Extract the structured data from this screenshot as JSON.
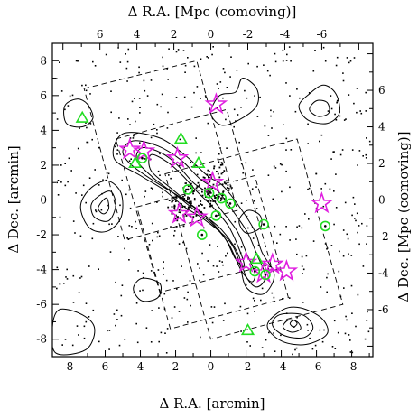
{
  "chart_data": {
    "type": "scatter",
    "title": "",
    "bottom_axis": {
      "label": "Δ R.A. [arcmin]",
      "range": [
        9,
        -9.2
      ],
      "ticks": [
        8,
        6,
        4,
        2,
        0,
        -2,
        -4,
        -6,
        -8
      ]
    },
    "left_axis": {
      "label": "Δ Dec. [arcmin]",
      "range": [
        -9,
        9
      ],
      "ticks": [
        -8,
        -6,
        -4,
        -2,
        0,
        2,
        4,
        6,
        8
      ]
    },
    "top_axis": {
      "label": "Δ R.A. [Mpc (comoving)]",
      "ticks": [
        6,
        4,
        2,
        0,
        -2,
        -4,
        -6
      ]
    },
    "right_axis": {
      "label": "Δ Dec. [Mpc (comoving)]",
      "ticks": [
        -6,
        -4,
        -2,
        0,
        2,
        4,
        6
      ]
    },
    "colors": {
      "star": "#e020e0",
      "circle": "#22dd22",
      "triangle": "#22dd22",
      "contour": "#000000",
      "field": "#000000"
    },
    "series": [
      {
        "marker": "star",
        "points": [
          [
            -0.3,
            5.5
          ],
          [
            4.6,
            2.9
          ],
          [
            3.8,
            2.8
          ],
          [
            1.9,
            2.4
          ],
          [
            -0.1,
            1.0
          ],
          [
            -6.3,
            -0.2
          ],
          [
            1.8,
            -0.8
          ],
          [
            0.8,
            -1.0
          ],
          [
            -2.0,
            -3.6
          ],
          [
            -3.5,
            -3.7
          ],
          [
            -4.3,
            -4.1
          ],
          [
            -3.0,
            -4.2
          ]
        ]
      },
      {
        "marker": "circle",
        "points": [
          [
            3.9,
            2.4
          ],
          [
            1.3,
            0.6
          ],
          [
            0.1,
            0.4
          ],
          [
            -0.6,
            0.1
          ],
          [
            -1.1,
            -0.2
          ],
          [
            -0.3,
            -0.9
          ],
          [
            -6.5,
            -1.5
          ],
          [
            -3.0,
            -1.4
          ],
          [
            0.5,
            -2.0
          ],
          [
            -2.5,
            -4.1
          ],
          [
            -3.1,
            -4.3
          ]
        ]
      },
      {
        "marker": "triangle",
        "points": [
          [
            7.3,
            4.7
          ],
          [
            1.7,
            3.5
          ],
          [
            4.3,
            2.1
          ],
          [
            0.7,
            2.1
          ],
          [
            -2.6,
            -3.4
          ],
          [
            -2.1,
            -7.5
          ]
        ]
      }
    ],
    "contours": [
      {
        "level": 1,
        "rings": [
          [
            [
              5.0,
              3.8
            ],
            [
              3.0,
              3.6
            ],
            [
              1.5,
              2.6
            ],
            [
              0.2,
              1.4
            ],
            [
              -0.7,
              0.8
            ],
            [
              -1.7,
              -0.5
            ],
            [
              -2.5,
              -1.8
            ],
            [
              -2.9,
              -3.0
            ],
            [
              -3.6,
              -4.3
            ],
            [
              -3.0,
              -5.4
            ],
            [
              -2.0,
              -5.0
            ],
            [
              -1.6,
              -3.5
            ],
            [
              -1.0,
              -2.3
            ],
            [
              0.4,
              -1.1
            ],
            [
              1.5,
              -0.4
            ],
            [
              2.7,
              0.6
            ],
            [
              4.0,
              1.4
            ],
            [
              5.5,
              2.4
            ]
          ],
          [
            [
              -1.8,
              7.0
            ],
            [
              -1.4,
              6.2
            ],
            [
              -0.5,
              6.0
            ],
            [
              0.0,
              5.0
            ],
            [
              -0.6,
              4.3
            ],
            [
              -1.6,
              4.6
            ],
            [
              -2.6,
              5.4
            ],
            [
              -2.6,
              6.4
            ]
          ],
          [
            [
              -5.6,
              6.1
            ],
            [
              -5.0,
              5.4
            ],
            [
              -5.5,
              4.6
            ],
            [
              -6.6,
              4.4
            ],
            [
              -7.3,
              5.0
            ],
            [
              -7.1,
              6.1
            ],
            [
              -6.4,
              6.6
            ]
          ],
          [
            [
              6.9,
              0.6
            ],
            [
              5.9,
              1.1
            ],
            [
              5.1,
              0.4
            ],
            [
              5.1,
              -1.0
            ],
            [
              5.9,
              -1.8
            ],
            [
              6.9,
              -1.6
            ],
            [
              7.4,
              -0.4
            ]
          ],
          [
            [
              -2.1,
              -0.6
            ],
            [
              -1.6,
              -1.2
            ],
            [
              -2.0,
              -1.9
            ],
            [
              -2.8,
              -1.6
            ],
            [
              -2.8,
              -0.9
            ]
          ],
          [
            [
              -4.1,
              -6.3
            ],
            [
              -3.2,
              -7.2
            ],
            [
              -4.0,
              -8.1
            ],
            [
              -5.4,
              -8.3
            ],
            [
              -6.6,
              -7.7
            ],
            [
              -6.3,
              -6.8
            ],
            [
              -5.1,
              -6.2
            ]
          ],
          [
            [
              3.9,
              -4.5
            ],
            [
              4.4,
              -5.1
            ],
            [
              3.9,
              -5.8
            ],
            [
              3.0,
              -5.6
            ],
            [
              2.9,
              -4.8
            ]
          ],
          [
            [
              8.6,
              -6.3
            ],
            [
              7.3,
              -6.6
            ],
            [
              6.6,
              -7.4
            ],
            [
              7.1,
              -8.6
            ],
            [
              8.8,
              -8.8
            ],
            [
              9.0,
              -7.3
            ]
          ],
          [
            [
              7.0,
              5.5
            ],
            [
              7.6,
              5.8
            ],
            [
              8.3,
              5.4
            ],
            [
              8.2,
              4.4
            ],
            [
              7.3,
              4.2
            ],
            [
              6.7,
              4.7
            ]
          ]
        ]
      },
      {
        "level": 2,
        "rings": [
          [
            [
              4.4,
              3.4
            ],
            [
              3.0,
              3.1
            ],
            [
              1.7,
              2.3
            ],
            [
              0.6,
              1.2
            ],
            [
              -0.4,
              0.5
            ],
            [
              -1.3,
              -0.7
            ],
            [
              -2.1,
              -1.9
            ],
            [
              -2.6,
              -3.1
            ],
            [
              -3.1,
              -4.4
            ],
            [
              -2.6,
              -5.0
            ],
            [
              -2.0,
              -4.4
            ],
            [
              -1.5,
              -3.0
            ],
            [
              -0.6,
              -1.7
            ],
            [
              0.6,
              -0.7
            ],
            [
              1.8,
              0.2
            ],
            [
              3.1,
              1.0
            ],
            [
              4.5,
              2.0
            ],
            [
              5.0,
              2.8
            ]
          ],
          [
            [
              6.4,
              0.2
            ],
            [
              5.7,
              0.5
            ],
            [
              5.4,
              -0.3
            ],
            [
              5.8,
              -1.2
            ],
            [
              6.6,
              -1.0
            ],
            [
              6.8,
              -0.3
            ]
          ],
          [
            [
              -3.9,
              -6.6
            ],
            [
              -3.5,
              -7.2
            ],
            [
              -4.2,
              -7.8
            ],
            [
              -5.3,
              -7.9
            ],
            [
              -5.8,
              -7.3
            ],
            [
              -5.2,
              -6.6
            ]
          ],
          [
            [
              -6.0,
              5.7
            ],
            [
              -5.6,
              5.2
            ],
            [
              -6.1,
              4.8
            ],
            [
              -6.7,
              5.0
            ],
            [
              -6.6,
              5.6
            ]
          ]
        ]
      },
      {
        "level": 3,
        "rings": [
          [
            [
              3.9,
              3.0
            ],
            [
              2.8,
              2.7
            ],
            [
              1.9,
              2.0
            ],
            [
              1.0,
              1.0
            ],
            [
              0.2,
              0.4
            ],
            [
              -0.6,
              -0.6
            ],
            [
              -1.5,
              -1.8
            ],
            [
              -2.0,
              -3.0
            ],
            [
              -2.5,
              -4.2
            ],
            [
              -2.3,
              -4.7
            ],
            [
              -1.7,
              -4.0
            ],
            [
              -1.0,
              -2.5
            ],
            [
              -0.1,
              -1.4
            ],
            [
              0.9,
              -0.6
            ],
            [
              2.0,
              0.3
            ],
            [
              3.3,
              1.3
            ],
            [
              4.2,
              2.3
            ]
          ],
          [
            [
              6.2,
              -0.1
            ],
            [
              5.9,
              0.1
            ],
            [
              5.8,
              -0.5
            ],
            [
              6.1,
              -0.8
            ],
            [
              6.4,
              -0.5
            ]
          ],
          [
            [
              -4.4,
              -6.9
            ],
            [
              -4.1,
              -7.3
            ],
            [
              -4.6,
              -7.6
            ],
            [
              -5.1,
              -7.4
            ],
            [
              -4.9,
              -7.0
            ]
          ]
        ]
      },
      {
        "level": 4,
        "rings": [
          [
            [
              3.4,
              2.6
            ],
            [
              2.5,
              2.2
            ],
            [
              1.6,
              1.4
            ],
            [
              0.8,
              0.5
            ],
            [
              -0.1,
              -0.4
            ],
            [
              -1.0,
              -1.5
            ],
            [
              -1.6,
              -2.8
            ],
            [
              -1.9,
              -3.8
            ],
            [
              -1.4,
              -3.4
            ],
            [
              -0.8,
              -2.2
            ],
            [
              0.2,
              -1.0
            ],
            [
              1.2,
              -0.2
            ],
            [
              2.3,
              0.7
            ],
            [
              3.4,
              1.7
            ]
          ],
          [
            [
              -4.5,
              -7.1
            ],
            [
              -4.7,
              -7.3
            ],
            [
              -4.9,
              -7.1
            ],
            [
              -4.7,
              -6.9
            ]
          ]
        ]
      }
    ],
    "fields": [
      [
        [
          7.2,
          6.4
        ],
        [
          0.8,
          8.0
        ],
        [
          -1.5,
          -0.6
        ],
        [
          4.9,
          -2.3
        ]
      ],
      [
        [
          5.4,
          3.5
        ],
        [
          -0.9,
          5.2
        ],
        [
          -3.4,
          -3.7
        ],
        [
          2.9,
          -5.3
        ]
      ],
      [
        [
          2.6,
          1.5
        ],
        [
          -4.9,
          3.5
        ],
        [
          -7.5,
          -6.0
        ],
        [
          0.0,
          -8.0
        ]
      ],
      [
        [
          4.2,
          -0.4
        ],
        [
          -2.5,
          1.4
        ],
        [
          -4.4,
          -5.6
        ],
        [
          2.3,
          -7.4
        ]
      ]
    ]
  }
}
